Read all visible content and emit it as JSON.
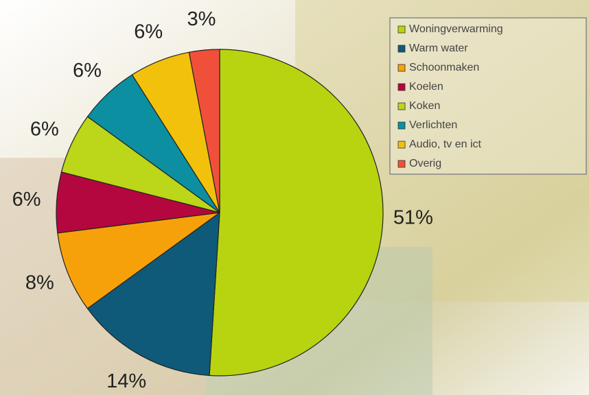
{
  "chart_data": {
    "type": "pie",
    "categories": [
      "Woningverwarming",
      "Warm water",
      "Schoonmaken",
      "Koelen",
      "Koken",
      "Verlichten",
      "Audio, tv en ict",
      "Overig"
    ],
    "values": [
      51,
      14,
      8,
      6,
      6,
      6,
      6,
      3
    ],
    "value_labels": [
      "51%",
      "14%",
      "8%",
      "6%",
      "6%",
      "6%",
      "6%",
      "3%"
    ],
    "colors": [
      "#b8d410",
      "#0f5a78",
      "#f7a10a",
      "#b5073f",
      "#bcd61a",
      "#0c8fa0",
      "#f2c10b",
      "#f0503a"
    ],
    "legend": "top-right"
  }
}
